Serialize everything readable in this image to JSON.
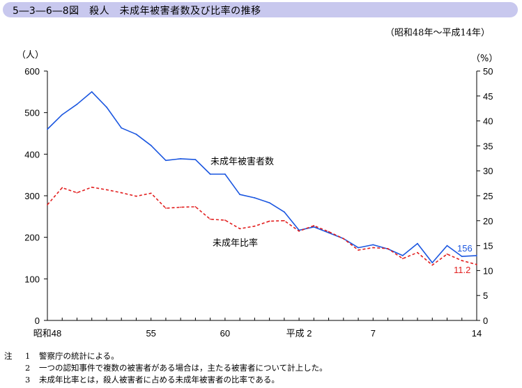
{
  "header": {
    "title": "5―3―6―8図　殺人　未成年被害者数及び比率の推移"
  },
  "period": "（昭和48年～平成14年）",
  "chart_data": {
    "type": "line",
    "x": [
      "昭和48",
      "49",
      "50",
      "51",
      "52",
      "53",
      "54",
      "55",
      "56",
      "57",
      "58",
      "59",
      "60",
      "61",
      "62",
      "63",
      "平成元",
      "平成2",
      "3",
      "4",
      "5",
      "6",
      "7",
      "8",
      "9",
      "10",
      "11",
      "12",
      "13",
      "14"
    ],
    "x_tick_labels": [
      {
        "index": 0,
        "label": "昭和48"
      },
      {
        "index": 7,
        "label": "55"
      },
      {
        "index": 12,
        "label": "60"
      },
      {
        "index": 17,
        "label": "平成 2"
      },
      {
        "index": 22,
        "label": "7"
      },
      {
        "index": 29,
        "label": "14"
      }
    ],
    "left_axis": {
      "unit": "（人）",
      "range": [
        0,
        600
      ],
      "ticks": [
        "0",
        "100",
        "200",
        "300",
        "400",
        "500",
        "600"
      ]
    },
    "right_axis": {
      "unit": "（%）",
      "range": [
        0,
        50
      ],
      "ticks": [
        "0",
        "5",
        "10",
        "15",
        "20",
        "25",
        "30",
        "35",
        "40",
        "45",
        "50"
      ]
    },
    "series": [
      {
        "name": "未成年被害者数",
        "axis": "left",
        "color": "#1a56e0",
        "style": "solid",
        "values": [
          460,
          495,
          520,
          550,
          513,
          463,
          448,
          421,
          385,
          389,
          387,
          352,
          352,
          303,
          295,
          283,
          261,
          217,
          225,
          211,
          197,
          175,
          182,
          172,
          156,
          185,
          139,
          180,
          154,
          156
        ],
        "end_label": "156"
      },
      {
        "name": "未成年比率",
        "axis": "right",
        "color": "#e21e1e",
        "style": "dashed",
        "values": [
          23.2,
          26.6,
          25.6,
          26.7,
          26.2,
          25.6,
          24.9,
          25.5,
          22.5,
          22.7,
          22.8,
          20.3,
          20.1,
          18.4,
          18.9,
          19.9,
          20.0,
          17.9,
          19.0,
          17.8,
          16.4,
          14.1,
          14.6,
          14.4,
          12.4,
          13.6,
          11.1,
          13.3,
          12.0,
          11.2
        ],
        "end_label": "11.2"
      }
    ],
    "annotations": [
      {
        "text": "未成年被害者数",
        "series": 0
      },
      {
        "text": "未成年比率",
        "series": 1
      }
    ]
  },
  "notes": [
    {
      "mark": "注",
      "num": "1",
      "text": "警察庁の統計による。"
    },
    {
      "mark": "",
      "num": "2",
      "text": "一つの認知事件で複数の被害者がある場合は，主たる被害者について計上した。"
    },
    {
      "mark": "",
      "num": "3",
      "text": "未成年比率とは，殺人被害者に占める未成年被害者の比率である。"
    }
  ]
}
